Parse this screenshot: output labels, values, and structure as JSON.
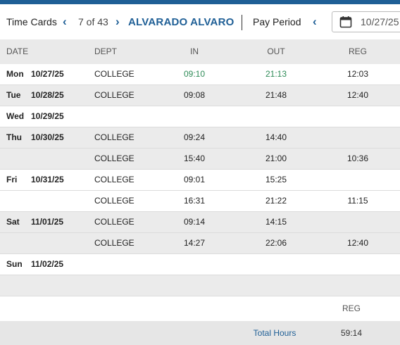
{
  "header": {
    "title": "Time Cards",
    "counter": "7 of 43",
    "employee": "ALVARADO ALVARO",
    "pay_period_label": "Pay Period",
    "date_value": "10/27/25"
  },
  "columns": {
    "date": "DATE",
    "dept": "DEPT",
    "in": "IN",
    "out": "OUT",
    "reg": "REG"
  },
  "rows": [
    {
      "dow": "Mon",
      "date": "10/27/25",
      "dept": "COLLEGE",
      "in": "09:10",
      "out": "21:13",
      "reg": "12:03",
      "highlight": true
    },
    {
      "dow": "Tue",
      "date": "10/28/25",
      "dept": "COLLEGE",
      "in": "09:08",
      "out": "21:48",
      "reg": "12:40"
    },
    {
      "dow": "Wed",
      "date": "10/29/25",
      "dept": "",
      "in": "",
      "out": "",
      "reg": ""
    },
    {
      "dow": "Thu",
      "date": "10/30/25",
      "dept": "COLLEGE",
      "in": "09:24",
      "out": "14:40",
      "reg": ""
    },
    {
      "dow": "",
      "date": "",
      "dept": "COLLEGE",
      "in": "15:40",
      "out": "21:00",
      "reg": "10:36"
    },
    {
      "dow": "Fri",
      "date": "10/31/25",
      "dept": "COLLEGE",
      "in": "09:01",
      "out": "15:25",
      "reg": ""
    },
    {
      "dow": "",
      "date": "",
      "dept": "COLLEGE",
      "in": "16:31",
      "out": "21:22",
      "reg": "11:15"
    },
    {
      "dow": "Sat",
      "date": "11/01/25",
      "dept": "COLLEGE",
      "in": "09:14",
      "out": "14:15",
      "reg": ""
    },
    {
      "dow": "",
      "date": "",
      "dept": "COLLEGE",
      "in": "14:27",
      "out": "22:06",
      "reg": "12:40"
    },
    {
      "dow": "Sun",
      "date": "11/02/25",
      "dept": "",
      "in": "",
      "out": "",
      "reg": ""
    }
  ],
  "totals": {
    "reg_label": "REG",
    "total_label": "Total Hours",
    "total_value": "59:14"
  },
  "colors": {
    "accent": "#1f5f96",
    "in_out_highlight": "#2e8b57"
  },
  "icons": [
    "chevron-left-icon",
    "chevron-right-icon",
    "calendar-icon"
  ]
}
